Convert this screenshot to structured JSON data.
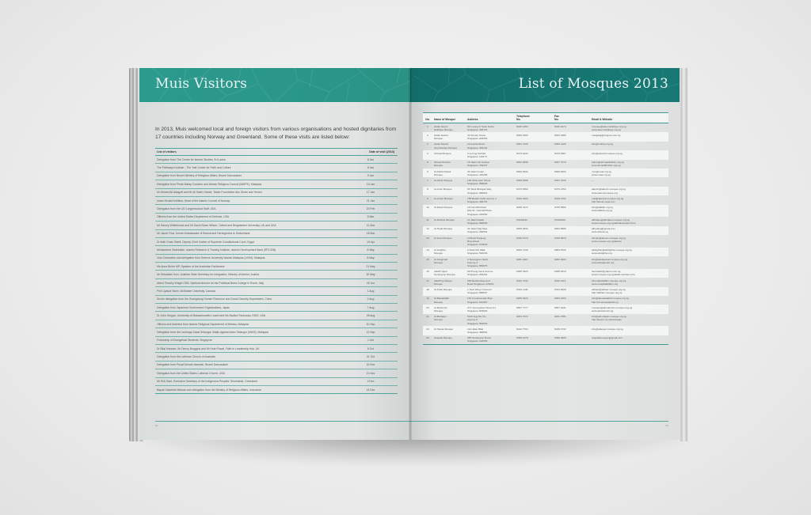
{
  "left_page": {
    "title": "Muis Visitors",
    "intro": "In 2013, Muis welcomed local and foreign visitors from various organisations and hosted dignitaries from 17 countries including Norway and Greenland. Some of these visits are listed below:",
    "table": {
      "headers": {
        "visitor": "List of visitors",
        "date": "Date of visit (2013)"
      },
      "rows": [
        {
          "visitor": "Delegation from The Centre for Islamic Studies, Sri Lanka",
          "date": "8 Jan"
        },
        {
          "visitor": "The Pathways Institute - The Yale Center for Faith and Culture",
          "date": "8 Jan"
        },
        {
          "visitor": "Delegation from Brunei Ministry of Religious Affairs, Brunei Darussalam",
          "date": "9 Jan"
        },
        {
          "visitor": "Delegation from Perak Malay Customs and Islamic Religious Council (MAIPK), Malaysia",
          "date": "15 Jan"
        },
        {
          "visitor": "Mr Ahmad Ali Alsagoff and Mr Ali Saleh Hamid, Tabah Foundation Abu Dhabi and Yemen",
          "date": "17 Jan"
        },
        {
          "visitor": "Imam Senaid Kobilica, Head of the Islamic Council of Norway",
          "date": "21 Jan"
        },
        {
          "visitor": "Delegation from the US Congressional Staff, USA",
          "date": "20 Feb"
        },
        {
          "visitor": "Officers from the United States Department of Defense, USA",
          "date": "8 Mar"
        },
        {
          "visitor": "Mr Harvey Whitehouse and Mr David Sloan Wilson, Oxford and Binghamton University, UK and USA",
          "date": "11 Mar"
        },
        {
          "visitor": "Mr Jacob Finci, former Ambassador of Bosnia and Herzegovina to Switzerland",
          "date": "18 Mar"
        },
        {
          "visitor": "Dr Adel Omar Sherif, Deputy Chief Justice of Supreme Constitutional Court, Egypt",
          "date": "10 Apr"
        },
        {
          "visitor": "Mohammed Obaidullah, Islamic Research & Training Institute, Islamic Development Bank (IRTI-IDB)",
          "date": "6 May"
        },
        {
          "visitor": "Vice-Chancellor and delegation from Science University Islamic Malaysia (USIM), Malaysia",
          "date": "8 May"
        },
        {
          "visitor": "Ms Anna Burke MP, Speaker of the Australian Parliament",
          "date": "21 May"
        },
        {
          "visitor": "Mr Sebastian Kurz, Austrian State Secretary for Integration, Ministry of Interior, Austria",
          "date": "30 May"
        },
        {
          "visitor": "Abbot Timothy Wright OSB, Spiritual director for the Pontifical Beda College in Rome, Italy",
          "date": "26 Jun"
        },
        {
          "visitor": "Prof Liyakat Takim, McMaster University, Canada",
          "date": "1 Aug"
        },
        {
          "visitor": "Senior delegation from the Guangdong Human Resource and Social Security Department, China",
          "date": "2 Aug"
        },
        {
          "visitor": "Delegation from Japanese Government Organisations, Japan",
          "date": "7 Aug"
        },
        {
          "visitor": "Dr John Horgan, University of Massachusetts Lowell and Ms Nadica Pavlovska, RSIS, USA",
          "date": "26 Aug"
        },
        {
          "visitor": "Officers and teachers from Islamic Religious Department of Melaka, Malaysia",
          "date": "10 Sep"
        },
        {
          "visitor": "Delegation from the Lembaga Zakat Selangor, Majlis Agama Islam Selangor (MAIS), Malaysia",
          "date": "13 Sep"
        },
        {
          "visitor": "Fellowship of Evangelical Students, Singapore",
          "date": "1 Oct"
        },
        {
          "visitor": "Dr Bilal Hassam, Mr Denny Broggins and Mr Krish Raval, Faith in Leadership Hub, UK",
          "date": "8 Oct"
        },
        {
          "visitor": "Delegation from the Lutheran Church of Australia",
          "date": "31 Oct"
        },
        {
          "visitor": "Delegation from Pusat Da'wah Islamiah, Brunei Darussalam",
          "date": "15 Nov"
        },
        {
          "visitor": "Delegation from the United States Lutheran Church, USA",
          "date": "21 Nov"
        },
        {
          "visitor": "Mr Erik Gant, Executive Secretary of the Indigenous Peoples' Secretariat, Greenland",
          "date": "4 Dec"
        },
        {
          "visitor": "Bapak Ulasetiah Marsan and delegation from the Ministry of Religious Affairs, Indonesia",
          "date": "14 Dec"
        }
      ]
    },
    "page_number": "82"
  },
  "right_page": {
    "title": "List of Mosques 2013",
    "table": {
      "headers": {
        "no": "No.",
        "name": "Name of Mosque",
        "address": "Address",
        "telephone": [
          "Telephone",
          "No."
        ],
        "fax": [
          "Fax",
          "No."
        ],
        "email": "Email & Website"
      },
      "rows": [
        {
          "no": "1",
          "name": [
            "Abdul Aleem",
            "Siddique Mosque"
          ],
          "address": [
            "90 Lorong K Telok Kurau",
            "Singapore 425723"
          ],
          "tel": "6346 0153",
          "fax": "6345 0274",
          "email": [
            "mosque@aleemsiddique.org.sg",
            "www.aleemsiddique.org.sg"
          ]
        },
        {
          "no": "2",
          "name": [
            "Abdul Gafoor",
            "Mosque"
          ],
          "address": [
            "41 Dunlop Street",
            "Singapore 209369"
          ],
          "tel": "6295 4209",
          "fax": "6293 3486",
          "email": [
            "masjidag@singnet.com.sg"
          ]
        },
        {
          "no": "3",
          "name": [
            "Abdul Hamid",
            "(Kg Pasiran) Mosque"
          ],
          "address": [
            "10 Gentle Road",
            "Singapore 309194"
          ],
          "tel": "6251 2729",
          "fax": "6259 1425",
          "email": [
            "info@muhkp.org.sg"
          ]
        },
        {
          "no": "4",
          "name": [
            "Ahmad Mosque"
          ],
          "address": [
            "2 Lorong Sarhad",
            "Singapore 119173"
          ],
          "tel": "6479 6442",
          "fax": "6479 8487",
          "email": [
            "info@ahmad.mosque.org.sg"
          ]
        },
        {
          "no": "5",
          "name": [
            "Ahmad Ibrahim",
            "Mosque"
          ],
          "address": [
            "15 Jalan Ulu Seletar",
            "Singapore 769227"
          ],
          "tel": "6454 0848",
          "fax": "6457 4770",
          "email": [
            "admin@ahmadibrahim.org.sg",
            "www.ahmadibrahim.org.sg"
          ]
        },
        {
          "no": "6",
          "name": [
            "Al-Abdul Razak",
            "Mosque"
          ],
          "address": [
            "30 Jalan Ismail",
            "Singapore 419285"
          ],
          "tel": "6846 8434",
          "fax": "6846 8403",
          "email": [
            "mro@maar.org.sg",
            "www.maar.org.sg"
          ]
        },
        {
          "no": "7",
          "name": [
            "Al-Abrar Mosque"
          ],
          "address": [
            "192 Telok Ayer Street",
            "Singapore 068635"
          ],
          "tel": "6220 6306",
          "fax": "6327 9729",
          "email": [
            "—"
          ]
        },
        {
          "no": "8",
          "name": [
            "Al-Amin Mosque"
          ],
          "address": [
            "50 Telok Blangah Way",
            "Singapore 098801"
          ],
          "tel": "6272 5359",
          "fax": "6270 2153",
          "email": [
            "alamin@alamin.mosque.org.sg",
            "www.alaminmosque.org"
          ]
        },
        {
          "no": "9",
          "name": [
            "Al-Ansar Mosque"
          ],
          "address": [
            "155 Bedok North Avenue 1",
            "Singapore 469751"
          ],
          "tel": "6449 2420",
          "fax": "6445 4702",
          "email": [
            "mail@alansar.mosque.org.sg",
            "http://ansar.neqa.com"
          ]
        },
        {
          "no": "10",
          "name": [
            "Al-Falah Mosque"
          ],
          "address": [
            "15 Cairnhill Road",
            "#01-01, Cairnhill Place",
            "Singapore 229650"
          ],
          "tel": "6235 3172",
          "fax": "6735 5580",
          "email": [
            "info@alfalah.org.sg",
            "www.alfalah.org.sg"
          ]
        },
        {
          "no": "11",
          "name": [
            "Al-Firdaus Mosque"
          ],
          "address": [
            "11 Jalan Ibadat",
            "Singapore 698955"
          ],
          "tel": "67646334",
          "fax": "67625320",
          "email": [
            "alfirdaus@alfirdaus.mosque.org.sg",
            "www.mosque.org.sg/alfirdaus/index.html"
          ]
        },
        {
          "no": "12",
          "name": [
            "Al-Huda Mosque"
          ],
          "address": [
            "34 Jalan Haji Alias",
            "Singapore 268534"
          ],
          "tel": "6468 4844",
          "fax": "6463 9589",
          "email": [
            "alhudasg@gmail.com",
            "www.alhuda.sg"
          ]
        },
        {
          "no": "13",
          "name": [
            "Al-Iman Mosque"
          ],
          "address": [
            "10 Bukit Panjang",
            "Ring Road",
            "Singapore 679943"
          ],
          "tel": "6769 0770",
          "fax": "6769 8970",
          "email": [
            "aliman@aliman.mosque.org.sg",
            "www.mosque.org.sg/aliman"
          ]
        },
        {
          "no": "14",
          "name": [
            "Al-Istighfar",
            "Mosque"
          ],
          "address": [
            "2 Pasir Ris Walk",
            "Singapore 518239"
          ],
          "tel": "6426 7130",
          "fax": "6583 8722",
          "email": [
            "alistighfar@alistighfar.mosque.org.sg",
            "www.alistighfar.org"
          ]
        },
        {
          "no": "15",
          "name": [
            "Al-Istiqamah",
            "Mosque"
          ],
          "address": [
            "2 Serangoon North",
            "Avenue 2",
            "Singapore 555876"
          ],
          "tel": "6281 4287",
          "fax": "6283 3204",
          "email": [
            "info@alistiqamah.mosque.org.sg",
            "www.alistiqamah.org"
          ]
        },
        {
          "no": "16",
          "name": [
            "Alkaff Upper",
            "Serangoon Mosque"
          ],
          "address": [
            "66 Pheng Geck Avenue",
            "Singapore 348261"
          ],
          "tel": "6280 0320",
          "fax": "6288 9019",
          "email": [
            "fauzsalleh@yahoo.com.sg",
            "www.mosque.org.sg/alkaff-us/index.php"
          ]
        },
        {
          "no": "17",
          "name": [
            "Alkaff Kg Melayu",
            "Mosque"
          ],
          "address": [
            "200 Bedok Reservoir",
            "Road Singapore 479221"
          ],
          "tel": "6242 7344",
          "fax": "6242 0112",
          "email": [
            "inbox@alkaffkm.mosque.org.sg",
            "www.masjidalkaffkm.org"
          ]
        },
        {
          "no": "18",
          "name": [
            "Al-Khair Mosque"
          ],
          "address": [
            "1 Teck Whye Crescent",
            "Singapore 688847"
          ],
          "tel": "6760 1139",
          "fax": "6763 6028",
          "email": [
            "alkhair@alkhair.mosque.org.sg",
            "http://alkhair-mosque.org.sg"
          ]
        },
        {
          "no": "19",
          "name": [
            "Al-Mawaddah",
            "Mosque"
          ],
          "address": [
            "151 Compassvale Bow",
            "Singapore 544997"
          ],
          "tel": "6489 0224",
          "fax": "6384 0403",
          "email": [
            "info@almawaddah.mosque.org.sg",
            "http://v1.almawaddah.sg"
          ]
        },
        {
          "no": "20",
          "name": [
            "Al-Mukminin",
            "Mosque"
          ],
          "address": [
            "271 Jurong East Street 21",
            "Singapore 609603"
          ],
          "tel": "6567 7777",
          "fax": "6567 3441",
          "email": [
            "mosque@almukminin.mosque.org.sg",
            "www.almukminin.sg"
          ]
        },
        {
          "no": "21",
          "name": [
            "Al-Muttaqin",
            "Mosque"
          ],
          "address": [
            "5140 Ang Mo Kio",
            "Avenue 6",
            "Singapore 569843"
          ],
          "tel": "6454 7472",
          "fax": "6451 0781",
          "email": [
            "info@almuttaqin.mosque.org.sg",
            "http://tinyurl.com/almuttaqin"
          ]
        },
        {
          "no": "22",
          "name": [
            "Al-Taqua Mosque"
          ],
          "address": [
            "11A Jalan Bilal",
            "Singapore 468862"
          ],
          "tel": "6442 7704",
          "fax": "6445 4732",
          "email": [
            "info@altaqua.mosque.org.sg"
          ]
        },
        {
          "no": "23",
          "name": [
            "Angullia Mosque"
          ],
          "address": [
            "265 Serangoon Road",
            "Singapore 218099"
          ],
          "tel": "6295 1478",
          "fax": "6299 3928",
          "email": [
            "angulliamosque@gmail.com"
          ]
        }
      ]
    },
    "page_number": "83"
  },
  "colors": {
    "left_header": "#2d9a8e",
    "right_header": "#157470",
    "rule": "#4fa39a",
    "page": "#e1e4e2",
    "background": "#ececec"
  }
}
